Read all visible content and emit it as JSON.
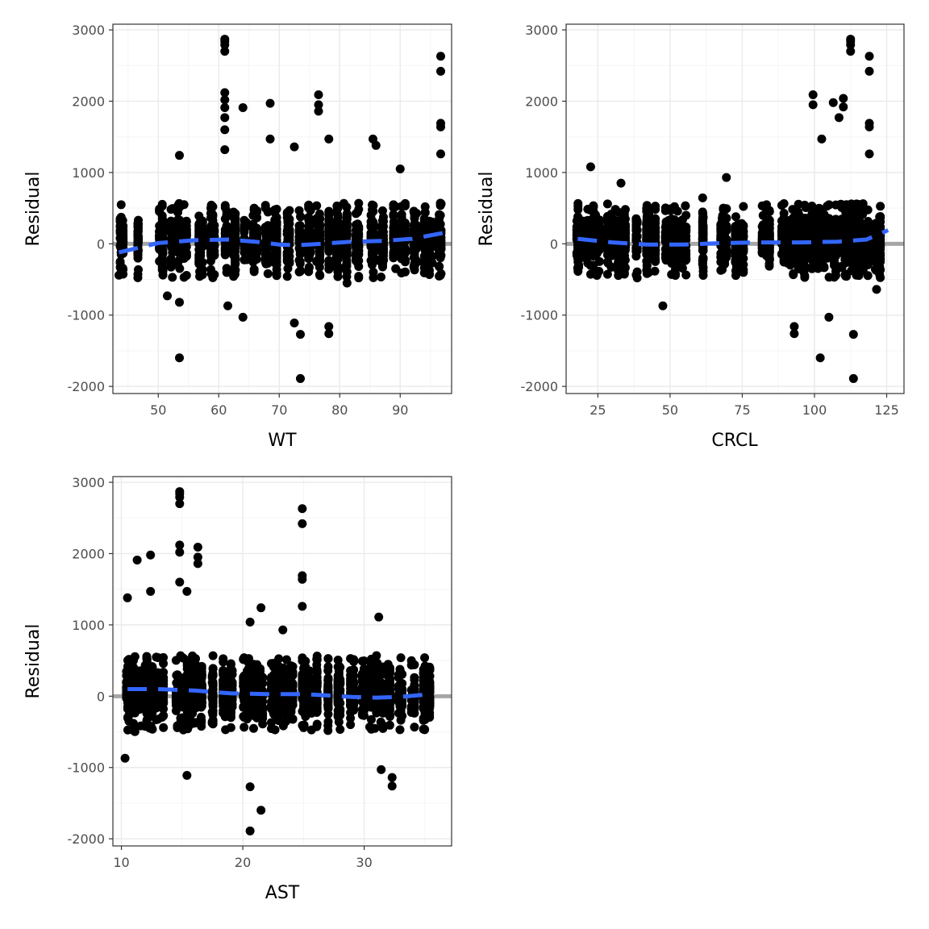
{
  "colors": {
    "points": "#000000",
    "reference_line": "#a6a6a6",
    "smooth_line": "#3366ff",
    "grid_major": "#ebebeb",
    "grid_minor": "#f5f5f5",
    "panel_border": "#333333"
  },
  "chart_data": [
    {
      "type": "scatter",
      "xlabel": "WT",
      "ylabel": "Residual",
      "xlim": [
        42.5,
        98.5
      ],
      "ylim": [
        -2100,
        3080
      ],
      "xticks": [
        50,
        60,
        70,
        80,
        90
      ],
      "yticks": [
        -2000,
        -1000,
        0,
        1000,
        2000,
        3000
      ],
      "ytick_labels": [
        "-2000",
        "-1000",
        "0",
        "1000",
        "2000",
        "3000"
      ],
      "reference_line_y": 0,
      "x_clusters": [
        44,
        46.5,
        50.5,
        52,
        53.5,
        54.5,
        57,
        59,
        61,
        62.5,
        64.5,
        66,
        68,
        69.5,
        71.5,
        73.5,
        75,
        76.5,
        78,
        79.5,
        81,
        83,
        85.5,
        87,
        89,
        90.5,
        92.5,
        94,
        95,
        96.5
      ],
      "notable_points": [
        {
          "x": 61,
          "y": 2870
        },
        {
          "x": 61,
          "y": 2840
        },
        {
          "x": 61,
          "y": 2790
        },
        {
          "x": 61,
          "y": 2700
        },
        {
          "x": 61,
          "y": 2120
        },
        {
          "x": 61,
          "y": 2020
        },
        {
          "x": 61,
          "y": 1910
        },
        {
          "x": 61,
          "y": 1770
        },
        {
          "x": 61,
          "y": 1600
        },
        {
          "x": 61,
          "y": 1320
        },
        {
          "x": 64,
          "y": 1910
        },
        {
          "x": 68.5,
          "y": 1970
        },
        {
          "x": 68.5,
          "y": 1470
        },
        {
          "x": 72.5,
          "y": 1360
        },
        {
          "x": 76.5,
          "y": 2090
        },
        {
          "x": 76.5,
          "y": 1950
        },
        {
          "x": 76.5,
          "y": 1860
        },
        {
          "x": 78.2,
          "y": 1470
        },
        {
          "x": 85.5,
          "y": 1470
        },
        {
          "x": 86,
          "y": 1380
        },
        {
          "x": 90,
          "y": 1050
        },
        {
          "x": 96.7,
          "y": 2630
        },
        {
          "x": 96.7,
          "y": 2420
        },
        {
          "x": 96.7,
          "y": 1690
        },
        {
          "x": 96.7,
          "y": 1640
        },
        {
          "x": 96.7,
          "y": 1260
        },
        {
          "x": 53.5,
          "y": 1240
        },
        {
          "x": 53.5,
          "y": -1600
        },
        {
          "x": 53.5,
          "y": -820
        },
        {
          "x": 61.5,
          "y": -870
        },
        {
          "x": 64,
          "y": -1030
        },
        {
          "x": 72.5,
          "y": -1110
        },
        {
          "x": 73.5,
          "y": -1270
        },
        {
          "x": 73.5,
          "y": -1890
        },
        {
          "x": 78.2,
          "y": -1160
        },
        {
          "x": 78.2,
          "y": -1260
        },
        {
          "x": 43.5,
          "y": -440
        },
        {
          "x": 51.5,
          "y": -730
        }
      ],
      "smooth_line": [
        {
          "x": 43.5,
          "y": -120
        },
        {
          "x": 50,
          "y": 10
        },
        {
          "x": 56,
          "y": 50
        },
        {
          "x": 61.5,
          "y": 60
        },
        {
          "x": 66,
          "y": 30
        },
        {
          "x": 70,
          "y": -10
        },
        {
          "x": 73,
          "y": -20
        },
        {
          "x": 77,
          "y": 0
        },
        {
          "x": 82,
          "y": 30
        },
        {
          "x": 87,
          "y": 40
        },
        {
          "x": 92,
          "y": 70
        },
        {
          "x": 97,
          "y": 150
        }
      ]
    },
    {
      "type": "scatter",
      "xlabel": "CRCL",
      "ylabel": "Residual",
      "xlim": [
        14,
        131
      ],
      "ylim": [
        -2100,
        3080
      ],
      "xticks": [
        25,
        50,
        75,
        100,
        125
      ],
      "yticks": [
        -2000,
        -1000,
        0,
        1000,
        2000,
        3000
      ],
      "ytick_labels": [
        "-2000",
        "-1000",
        "0",
        "1000",
        "2000",
        "3000"
      ],
      "reference_line_y": 0,
      "x_clusters": [
        18,
        20,
        22,
        24,
        26,
        29,
        31.5,
        34,
        38,
        42,
        45,
        48,
        50,
        52,
        55,
        61,
        68,
        69,
        73,
        75,
        82,
        84,
        89,
        91,
        93,
        95,
        97,
        99,
        101,
        103,
        105,
        107,
        109,
        111,
        113,
        115,
        117,
        119,
        121,
        123
      ],
      "notable_points": [
        {
          "x": 112.5,
          "y": 2870
        },
        {
          "x": 112.5,
          "y": 2840
        },
        {
          "x": 112.5,
          "y": 2790
        },
        {
          "x": 112.5,
          "y": 2700
        },
        {
          "x": 119,
          "y": 2630
        },
        {
          "x": 119,
          "y": 2420
        },
        {
          "x": 99.5,
          "y": 2090
        },
        {
          "x": 99.5,
          "y": 1950
        },
        {
          "x": 106.5,
          "y": 1980
        },
        {
          "x": 110,
          "y": 2040
        },
        {
          "x": 110,
          "y": 1920
        },
        {
          "x": 119,
          "y": 1690
        },
        {
          "x": 119,
          "y": 1640
        },
        {
          "x": 108.5,
          "y": 1770
        },
        {
          "x": 102.5,
          "y": 1470
        },
        {
          "x": 119,
          "y": 1260
        },
        {
          "x": 22.5,
          "y": 1080
        },
        {
          "x": 69.5,
          "y": 930
        },
        {
          "x": 33,
          "y": 850
        },
        {
          "x": 47.5,
          "y": -870
        },
        {
          "x": 50.5,
          "y": -430
        },
        {
          "x": 102,
          "y": -1600
        },
        {
          "x": 113.5,
          "y": -1890
        },
        {
          "x": 113.5,
          "y": -1270
        },
        {
          "x": 93,
          "y": -1260
        },
        {
          "x": 93,
          "y": -1160
        },
        {
          "x": 105,
          "y": -1030
        },
        {
          "x": 121.5,
          "y": -640
        },
        {
          "x": 18,
          "y": -340
        }
      ],
      "smooth_line": [
        {
          "x": 18,
          "y": 70
        },
        {
          "x": 30,
          "y": 20
        },
        {
          "x": 42,
          "y": -10
        },
        {
          "x": 55,
          "y": -10
        },
        {
          "x": 68,
          "y": 10
        },
        {
          "x": 80,
          "y": 20
        },
        {
          "x": 95,
          "y": 20
        },
        {
          "x": 108,
          "y": 30
        },
        {
          "x": 118,
          "y": 60
        },
        {
          "x": 125.5,
          "y": 190
        }
      ]
    },
    {
      "type": "scatter",
      "xlabel": "AST",
      "ylabel": "Residual",
      "xlim": [
        9.3,
        37.2
      ],
      "ylim": [
        -2100,
        3080
      ],
      "xticks": [
        10,
        20,
        30
      ],
      "yticks": [
        -2000,
        -1000,
        0,
        1000,
        2000,
        3000
      ],
      "ytick_labels": [
        "-2000",
        "-1000",
        "0",
        "1000",
        "2000",
        "3000"
      ],
      "reference_line_y": 0,
      "x_clusters": [
        10.5,
        11,
        11.5,
        12,
        12.5,
        13,
        13.5,
        14.5,
        15,
        15.5,
        16,
        16.5,
        17.5,
        18.5,
        19,
        20,
        20.5,
        21,
        21.5,
        22.5,
        23,
        23.5,
        24,
        25,
        25.5,
        26,
        27,
        28,
        29,
        30,
        30.5,
        31,
        31.5,
        32,
        33,
        34,
        35,
        35.5
      ],
      "notable_points": [
        {
          "x": 14.8,
          "y": 2870
        },
        {
          "x": 14.8,
          "y": 2840
        },
        {
          "x": 14.8,
          "y": 2790
        },
        {
          "x": 14.8,
          "y": 2700
        },
        {
          "x": 24.9,
          "y": 2630
        },
        {
          "x": 24.9,
          "y": 2420
        },
        {
          "x": 14.8,
          "y": 2120
        },
        {
          "x": 14.8,
          "y": 2020
        },
        {
          "x": 16.3,
          "y": 2090
        },
        {
          "x": 16.3,
          "y": 1950
        },
        {
          "x": 16.3,
          "y": 1860
        },
        {
          "x": 12.4,
          "y": 1980
        },
        {
          "x": 11.3,
          "y": 1910
        },
        {
          "x": 24.9,
          "y": 1690
        },
        {
          "x": 24.9,
          "y": 1640
        },
        {
          "x": 14.8,
          "y": 1600
        },
        {
          "x": 12.4,
          "y": 1470
        },
        {
          "x": 15.4,
          "y": 1470
        },
        {
          "x": 10.5,
          "y": 1380
        },
        {
          "x": 24.9,
          "y": 1260
        },
        {
          "x": 21.5,
          "y": 1240
        },
        {
          "x": 20.6,
          "y": 1040
        },
        {
          "x": 23.3,
          "y": 930
        },
        {
          "x": 31.2,
          "y": 1110
        },
        {
          "x": 20.6,
          "y": -1890
        },
        {
          "x": 21.5,
          "y": -1600
        },
        {
          "x": 20.6,
          "y": -1270
        },
        {
          "x": 15.4,
          "y": -1110
        },
        {
          "x": 32.3,
          "y": -1260
        },
        {
          "x": 32.3,
          "y": -1140
        },
        {
          "x": 31.4,
          "y": -1030
        },
        {
          "x": 10.3,
          "y": -870
        }
      ],
      "smooth_line": [
        {
          "x": 10.5,
          "y": 100
        },
        {
          "x": 13,
          "y": 100
        },
        {
          "x": 16,
          "y": 80
        },
        {
          "x": 19,
          "y": 40
        },
        {
          "x": 22,
          "y": 30
        },
        {
          "x": 25,
          "y": 30
        },
        {
          "x": 27,
          "y": 10
        },
        {
          "x": 29,
          "y": -10
        },
        {
          "x": 31,
          "y": -20
        },
        {
          "x": 33,
          "y": -10
        },
        {
          "x": 35.5,
          "y": 30
        }
      ]
    }
  ]
}
